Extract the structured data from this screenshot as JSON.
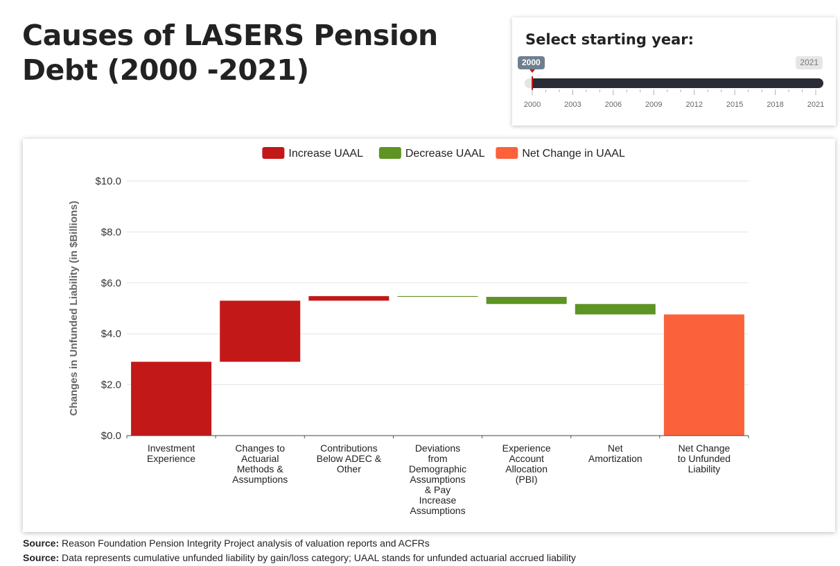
{
  "page": {
    "title": "Causes of LASERS Pension Debt (2000 -2021)"
  },
  "year_slider": {
    "label": "Select starting year:",
    "from_value": "2000",
    "to_value": "2021",
    "tick_labels": [
      "2000",
      "2003",
      "2006",
      "2009",
      "2012",
      "2015",
      "2018",
      "2021"
    ],
    "min": 2000,
    "max": 2021
  },
  "colors": {
    "increase": "#c21818",
    "decrease": "#5e9423",
    "net": "#fb623b"
  },
  "chart_data": {
    "type": "waterfall",
    "ylabel": "Changes in Unfunded Liability (in $Billions)",
    "ylim": [
      0,
      10
    ],
    "y_ticks": [
      0,
      2,
      4,
      6,
      8,
      10
    ],
    "y_tick_labels": [
      "$0.0",
      "$2.0",
      "$4.0",
      "$6.0",
      "$8.0",
      "$10.0"
    ],
    "grid": true,
    "legend_position": "top-center",
    "legend": [
      {
        "label": "Increase UAAL",
        "kind": "increase"
      },
      {
        "label": "Decrease UAAL",
        "kind": "decrease"
      },
      {
        "label": "Net Change in UAAL",
        "kind": "net"
      }
    ],
    "bars": [
      {
        "category": [
          "Investment",
          "Experience"
        ],
        "start": 0.0,
        "end": 2.9,
        "kind": "increase"
      },
      {
        "category": [
          "Changes to",
          "Actuarial",
          "Methods &",
          "Assumptions"
        ],
        "start": 2.9,
        "end": 5.3,
        "kind": "increase"
      },
      {
        "category": [
          "Contributions",
          "Below ADEC &",
          "Other"
        ],
        "start": 5.3,
        "end": 5.48,
        "kind": "increase"
      },
      {
        "category": [
          "Deviations",
          "from",
          "Demographic",
          "Assumptions",
          "& Pay",
          "Increase",
          "Assumptions"
        ],
        "start": 5.48,
        "end": 5.45,
        "kind": "decrease"
      },
      {
        "category": [
          "Experience",
          "Account",
          "Allocation",
          "(PBI)"
        ],
        "start": 5.45,
        "end": 5.17,
        "kind": "decrease"
      },
      {
        "category": [
          "Net",
          "Amortization"
        ],
        "start": 5.17,
        "end": 4.76,
        "kind": "decrease"
      },
      {
        "category": [
          "Net Change",
          "to Unfunded",
          "Liability"
        ],
        "start": 0.0,
        "end": 4.76,
        "kind": "net"
      }
    ]
  },
  "sources": [
    {
      "label": "Source:",
      "text": "Reason Foundation Pension Integrity Project analysis of valuation reports and ACFRs"
    },
    {
      "label": "Source:",
      "text": "Data represents cumulative unfunded liability by gain/loss category; UAAL stands for unfunded actuarial accrued liability"
    }
  ]
}
